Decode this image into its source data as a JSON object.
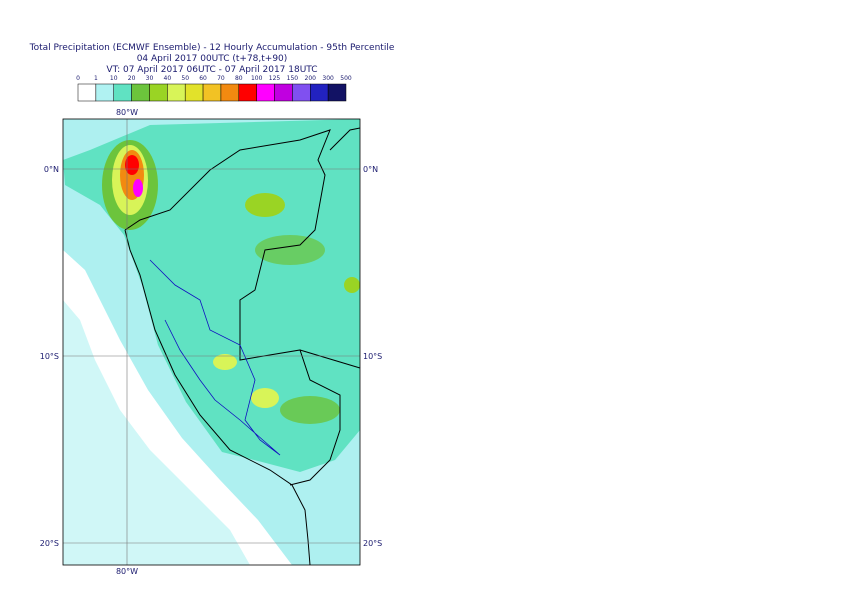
{
  "header": {
    "title": "Total Precipitation (ECMWF Ensemble) - 12 Hourly Accumulation - 95th Percentile",
    "run": "04 April 2017 00UTC (t+78,t+90)",
    "valid": "VT: 07 April 2017 06UTC - 07 April 2017 18UTC"
  },
  "legend": {
    "labels": [
      0,
      1,
      10,
      20,
      30,
      40,
      50,
      60,
      70,
      80,
      100,
      125,
      150,
      200,
      300,
      500
    ],
    "colors": [
      "#ffffff",
      "#b0f2f2",
      "#60e2c2",
      "#6cc43c",
      "#9ad424",
      "#d8f458",
      "#e2e22a",
      "#f2c224",
      "#f28a10",
      "#ff0000",
      "#ff00ff",
      "#c000e0",
      "#8050f0",
      "#2222c0",
      "#121264"
    ]
  },
  "map": {
    "lon_label": "80°W",
    "lat_labels": [
      "0°N",
      "10°S",
      "20°S"
    ]
  }
}
